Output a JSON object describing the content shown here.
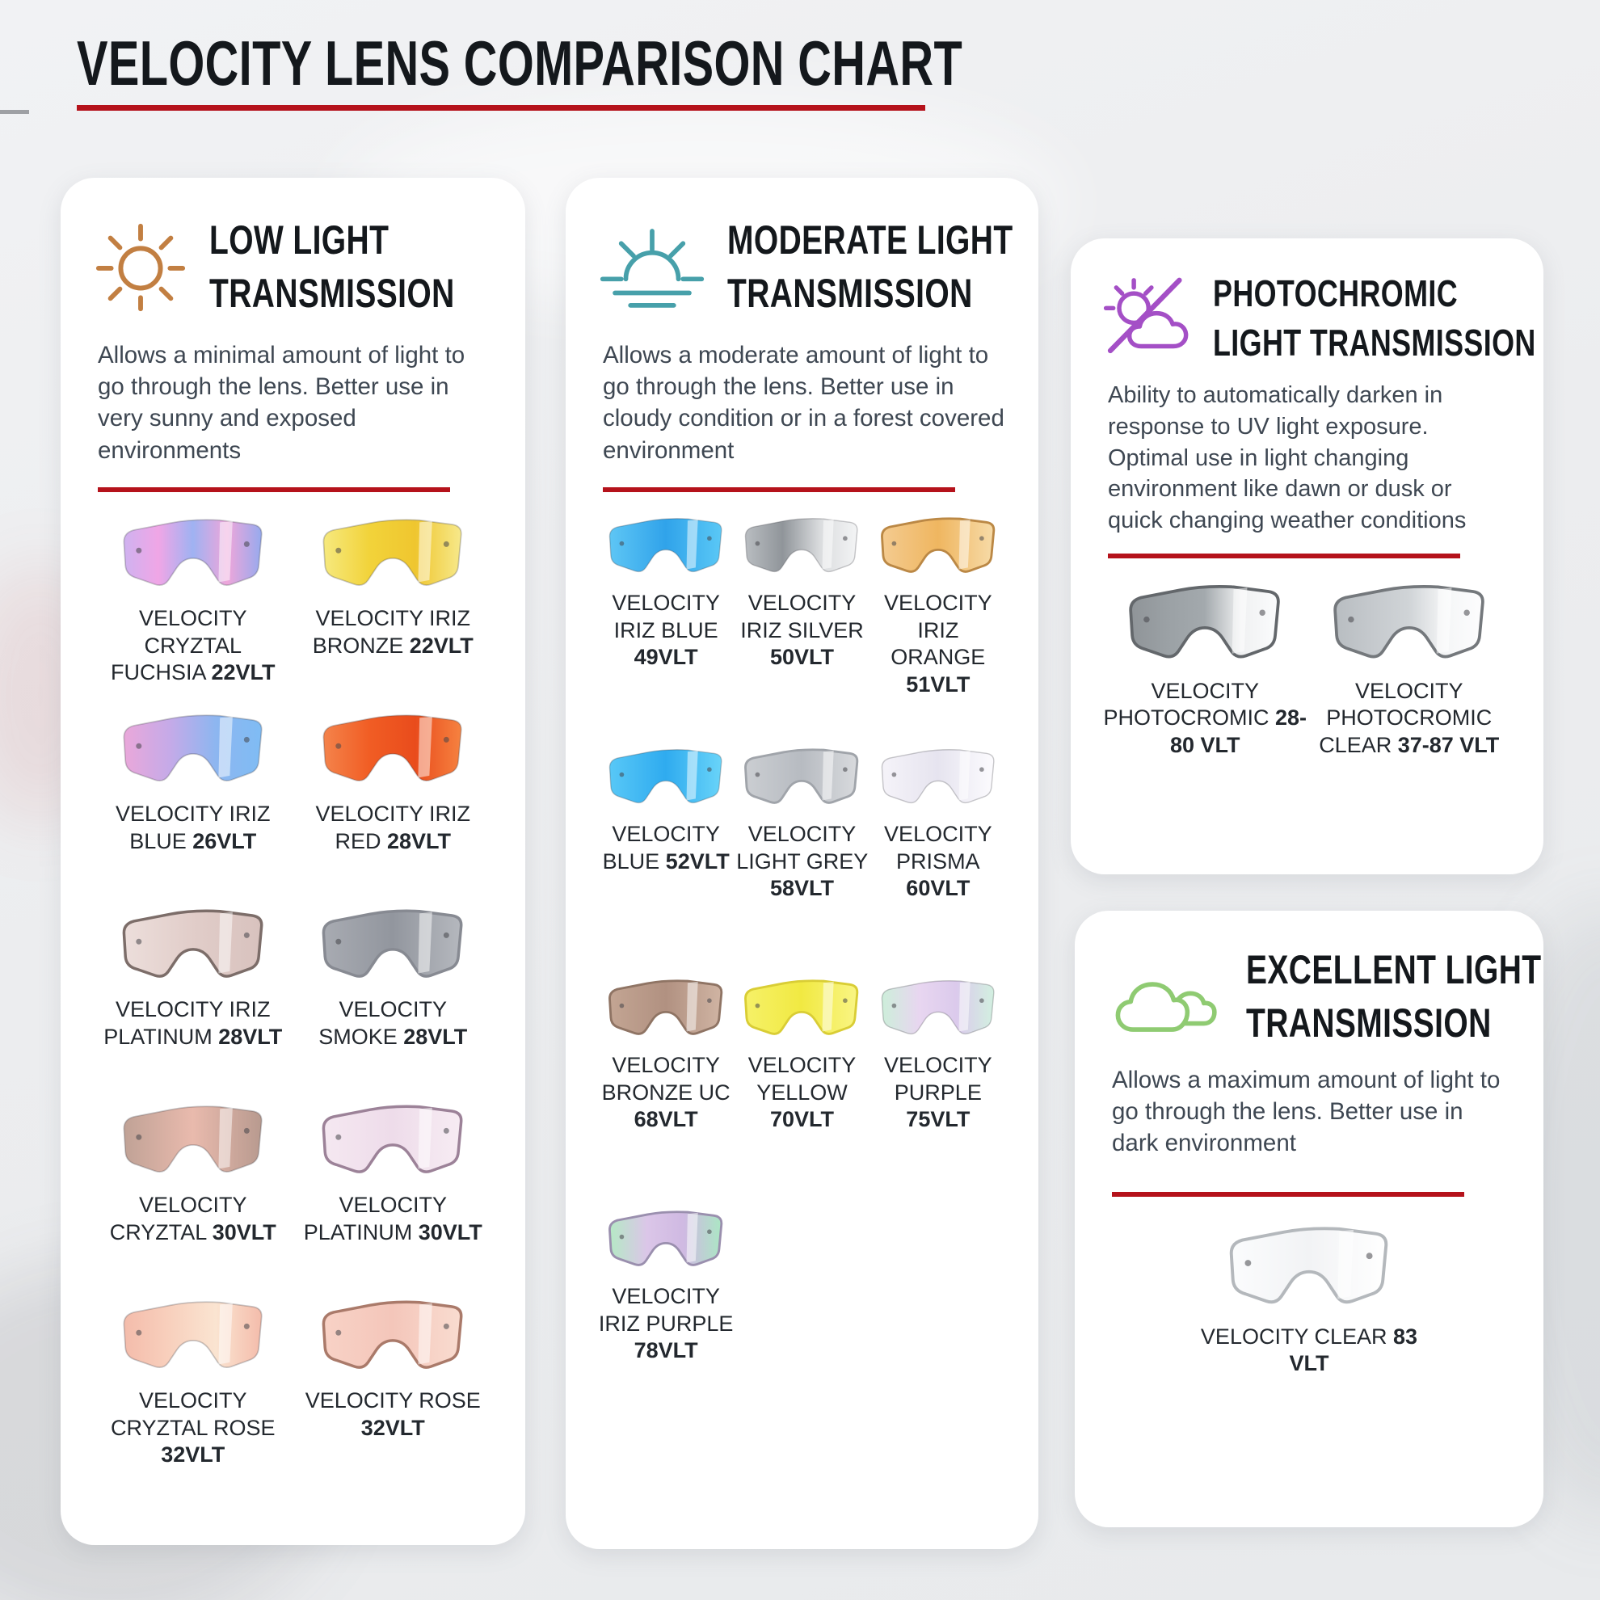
{
  "page": {
    "title": "VELOCITY LENS COMPARISON CHART",
    "accent_red": "#b5121b",
    "background": "#edeff1",
    "heading_color": "#14181c",
    "text_color": "#3e4752"
  },
  "cards": [
    {
      "name": "low-light",
      "icon": "sun-icon",
      "icon_color": "#c27f42",
      "title_line1": "LOW LIGHT",
      "title_line2": "TRANSMISSION",
      "description": "Allows a minimal amount of light to go through the lens. Better use in very sunny and exposed environments",
      "lenses": [
        {
          "name": "VELOCITY CRYZTAL FUCHSIA",
          "vlt": "22VLT",
          "grad": [
            "#cfb2f0",
            "#f0a6e6",
            "#9fb2f2",
            "#eea6da",
            "#96aaee"
          ]
        },
        {
          "name": "VELOCITY IRIZ BRONZE",
          "vlt": "22VLT",
          "grad": [
            "#f6e97e",
            "#f2d33a",
            "#efc62f",
            "#f7e98b"
          ]
        },
        {
          "name": "VELOCITY IRIZ BLUE",
          "vlt": "26VLT",
          "grad": [
            "#eaa8da",
            "#c5aae8",
            "#8db6f0",
            "#7fbcf4"
          ]
        },
        {
          "name": "VELOCITY IRIZ RED",
          "vlt": "28VLT",
          "grad": [
            "#f4834b",
            "#f15d24",
            "#e94c1c",
            "#f68240"
          ]
        },
        {
          "name": "VELOCITY IRIZ PLATINUM",
          "vlt": "28VLT",
          "grad": [
            "#ecdedb",
            "#e1cdc9",
            "#d8c2be"
          ],
          "rim": "#7c6d69"
        },
        {
          "name": "VELOCITY SMOKE",
          "vlt": "28VLT",
          "grad": [
            "#a8abb2",
            "#92969e",
            "#b5b8be"
          ],
          "rim": "#878a92"
        },
        {
          "name": "VELOCITY CRYZTAL",
          "vlt": "30VLT",
          "grad": [
            "#c0a296",
            "#e9baad",
            "#b89a8f"
          ]
        },
        {
          "name": "VELOCITY PLATINUM",
          "vlt": "30VLT",
          "grad": [
            "#f5e8f1",
            "#eedcea",
            "#f7ecf3"
          ],
          "rim": "#9c8298"
        },
        {
          "name": "VELOCITY CRYZTAL ROSE",
          "vlt": "32VLT",
          "grad": [
            "#f4bcab",
            "#f8d0bd",
            "#fae4d1",
            "#f4bcab"
          ]
        },
        {
          "name": "VELOCITY ROSE",
          "vlt": "32VLT",
          "grad": [
            "#f8d2c6",
            "#f4c6ba",
            "#f9dcd0"
          ],
          "rim": "#aa7a6a"
        }
      ]
    },
    {
      "name": "moderate-light",
      "icon": "sunrise-icon",
      "icon_color": "#47a0aa",
      "title_line1": "MODERATE LIGHT",
      "title_line2": "TRANSMISSION",
      "description": "Allows a moderate amount of light to go through the lens. Better use in cloudy condition or in a forest covered environment",
      "lenses": [
        {
          "name": "VELOCITY IRIZ BLUE",
          "vlt": "49VLT",
          "grad": [
            "#5ec6f5",
            "#30a3ea",
            "#5ac8f6"
          ]
        },
        {
          "name": "VELOCITY IRIZ SILVER",
          "vlt": "50VLT",
          "grad": [
            "#b9bdc1",
            "#90959a",
            "#dadcde",
            "#f3f4f5"
          ]
        },
        {
          "name": "VELOCITY IRIZ ORANGE",
          "vlt": "51VLT",
          "grad": [
            "#f4cb90",
            "#efb660",
            "#f7dba8"
          ],
          "rim": "#bb8845"
        },
        {
          "name": "VELOCITY BLUE",
          "vlt": "52VLT",
          "grad": [
            "#58c8f7",
            "#2fabef",
            "#69d4f9"
          ]
        },
        {
          "name": "VELOCITY LIGHT GREY",
          "vlt": "58VLT",
          "grad": [
            "#cbced2",
            "#b7bbc1",
            "#d8dadd"
          ],
          "rim": "#a0a4aa"
        },
        {
          "name": "VELOCITY PRISMA",
          "vlt": "60VLT",
          "grad": [
            "#f5f3f9",
            "#e6e4ef",
            "#fcfbfe"
          ]
        },
        {
          "name": "VELOCITY BRONZE UC",
          "vlt": "68VLT",
          "grad": [
            "#c3a593",
            "#b19181",
            "#d0b4a3"
          ],
          "rim": "#8f7464"
        },
        {
          "name": "VELOCITY YELLOW",
          "vlt": "70VLT",
          "grad": [
            "#f6f168",
            "#f1e942",
            "#f9f584"
          ],
          "rim": "#d9cd35"
        },
        {
          "name": "VELOCITY PURPLE",
          "vlt": "75VLT",
          "grad": [
            "#cdeeda",
            "#e8d6f0",
            "#dbcaec",
            "#d2f0e0"
          ]
        },
        {
          "name": "VELOCITY IRIZ PURPLE",
          "vlt": "78VLT",
          "grad": [
            "#b5e9c5",
            "#dbc6e8",
            "#cfb9e2",
            "#abe7c4"
          ],
          "rim": "#9a8fae"
        }
      ]
    },
    {
      "name": "photochromic",
      "icon": "sun-cloud-slash-icon",
      "icon_color": "#a44fc6",
      "title_line1": "PHOTOCHROMIC",
      "title_line2": "LIGHT TRANSMISSION",
      "description": "Ability to automatically darken in response to UV light exposure. Optimal use in light changing environment like dawn or dusk or quick changing weather conditions",
      "lenses": [
        {
          "name": "VELOCITY PHOTOCROMIC",
          "vlt": "28-80 VLT",
          "grad": [
            "#8f9498",
            "#9ba1a5",
            "#a3a9ad",
            "#f0f1f2",
            "#fbfcfd"
          ],
          "rim": "#63676b"
        },
        {
          "name": "VELOCITY PHOTOCROMIC CLEAR",
          "vlt": "37-87 VLT",
          "grad": [
            "#b8bdc1",
            "#c5c9cd",
            "#d0d4d7",
            "#f5f6f7",
            "#fdfdfe"
          ],
          "rim": "#74787c"
        }
      ]
    },
    {
      "name": "excellent-light",
      "icon": "clouds-icon",
      "icon_color": "#8fcb72",
      "title_line1": "EXCELLENT LIGHT",
      "title_line2": "TRANSMISSION",
      "description": "Allows a maximum amount of light to go through the lens. Better use in dark environment",
      "lenses": [
        {
          "name": "VELOCITY CLEAR",
          "vlt": "83 VLT",
          "grad": [
            "#fbfcfd",
            "#f2f3f5",
            "#ffffff"
          ],
          "rim": "#b4b8bc"
        }
      ]
    }
  ]
}
